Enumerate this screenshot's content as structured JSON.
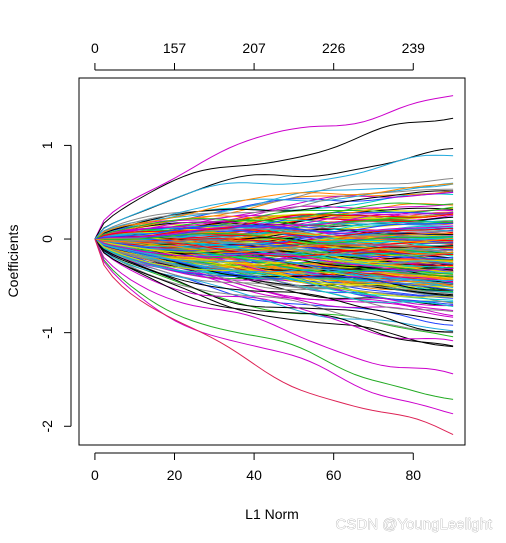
{
  "chart_data": {
    "type": "line",
    "title": "",
    "xlabel": "L1 Norm",
    "ylabel": "Coefficients",
    "xlim": [
      -4,
      93
    ],
    "ylim": [
      -2.2,
      1.72
    ],
    "x_ticks": [
      0,
      20,
      40,
      60,
      80
    ],
    "y_ticks": [
      -2,
      -1,
      0,
      1
    ],
    "top_axis": {
      "positions": [
        0,
        20,
        40,
        60,
        80
      ],
      "labels": [
        "0",
        "157",
        "207",
        "226",
        "239"
      ]
    },
    "x_max": 90,
    "highlighted_series": [
      {
        "color": "#cc00cc",
        "end": 1.55
      },
      {
        "color": "#000000",
        "end": 1.3
      },
      {
        "color": "#000000",
        "end": 0.95
      },
      {
        "color": "#22aadd",
        "end": 0.9
      },
      {
        "color": "#000000",
        "end": -1.0
      },
      {
        "color": "#cc00cc",
        "end": -1.1
      },
      {
        "color": "#000000",
        "end": -1.15
      },
      {
        "color": "#cc00cc",
        "end": -1.45
      },
      {
        "color": "#22aa22",
        "end": -1.7
      },
      {
        "color": "#cc00cc",
        "end": -1.85
      },
      {
        "color": "#dd2255",
        "end": -2.08
      }
    ],
    "bundle": {
      "count": 240,
      "end_min": -1.3,
      "end_max": 0.85,
      "palette": [
        "#000000",
        "#ff0000",
        "#22bb22",
        "#2244ff",
        "#00cccc",
        "#cc00cc",
        "#dddd00",
        "#888888",
        "#22aadd",
        "#ff8800"
      ]
    },
    "grid": false,
    "legend": "none"
  },
  "watermark": "CSDN @YoungLeelight"
}
